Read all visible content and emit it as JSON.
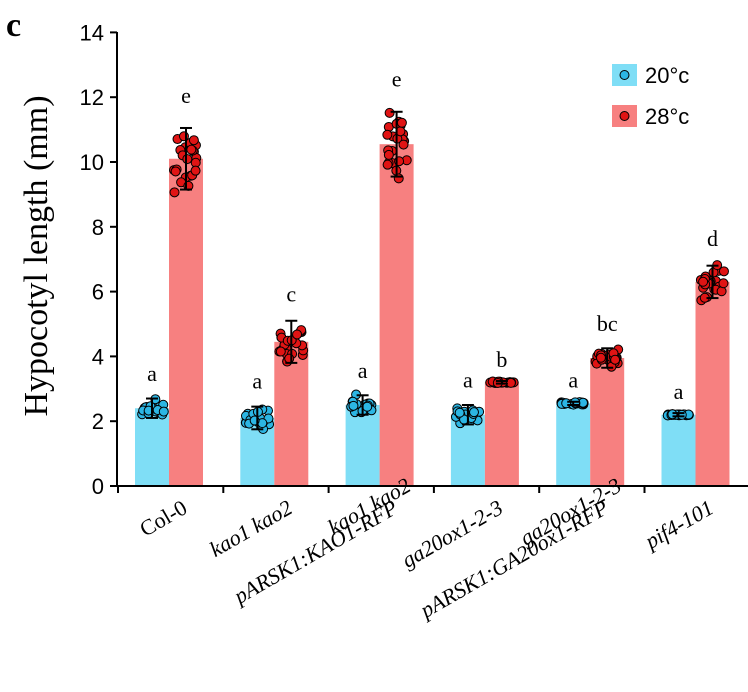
{
  "panel_label": "c",
  "chart_data": {
    "type": "bar",
    "ylabel": "Hypocotyl length (mm)",
    "ylim": [
      0,
      14
    ],
    "yticks": [
      "0",
      "2",
      "4",
      "6",
      "8",
      "10",
      "12",
      "14"
    ],
    "categories": [
      {
        "lines": [
          {
            "text": "Col-0",
            "italic": false
          }
        ]
      },
      {
        "lines": [
          {
            "text": "kao1 kao2",
            "italic": true
          }
        ]
      },
      {
        "lines": [
          {
            "text": "kao1 kao2",
            "italic": true
          },
          {
            "text": "pARSK1:KAO1-RFP",
            "italic": true
          }
        ]
      },
      {
        "lines": [
          {
            "text": "ga20ox1-2-3",
            "italic": true
          }
        ]
      },
      {
        "lines": [
          {
            "text": "ga20ox1-2-3",
            "italic": true
          },
          {
            "text": "pARSK1:GA20ox1-RFP",
            "italic": true
          }
        ]
      },
      {
        "lines": [
          {
            "text": "pif4-101",
            "italic": true
          }
        ]
      }
    ],
    "series": [
      {
        "name": "20°c",
        "color": "#7fdef6",
        "dot_color": "#2cb6e4",
        "values": [
          2.4,
          2.1,
          2.5,
          2.2,
          2.55,
          2.2
        ],
        "errors": [
          0.3,
          0.35,
          0.3,
          0.3,
          0.05,
          0.05
        ],
        "letters": [
          "a",
          "a",
          "a",
          "a",
          "a",
          "a"
        ],
        "spread": [
          0.3,
          0.35,
          0.3,
          0.3,
          0.04,
          0.02
        ]
      },
      {
        "name": "28°c",
        "color": "#f78080",
        "dot_color": "#e01414",
        "values": [
          10.1,
          4.45,
          10.55,
          3.2,
          3.95,
          6.3
        ],
        "errors": [
          0.95,
          0.65,
          1.0,
          0.04,
          0.3,
          0.5
        ],
        "letters": [
          "e",
          "c",
          "e",
          "b",
          "bc",
          "d"
        ],
        "spread": [
          0.95,
          0.6,
          1.0,
          0.03,
          0.3,
          0.5
        ]
      }
    ],
    "legend_position": "top-right",
    "grid": false
  }
}
